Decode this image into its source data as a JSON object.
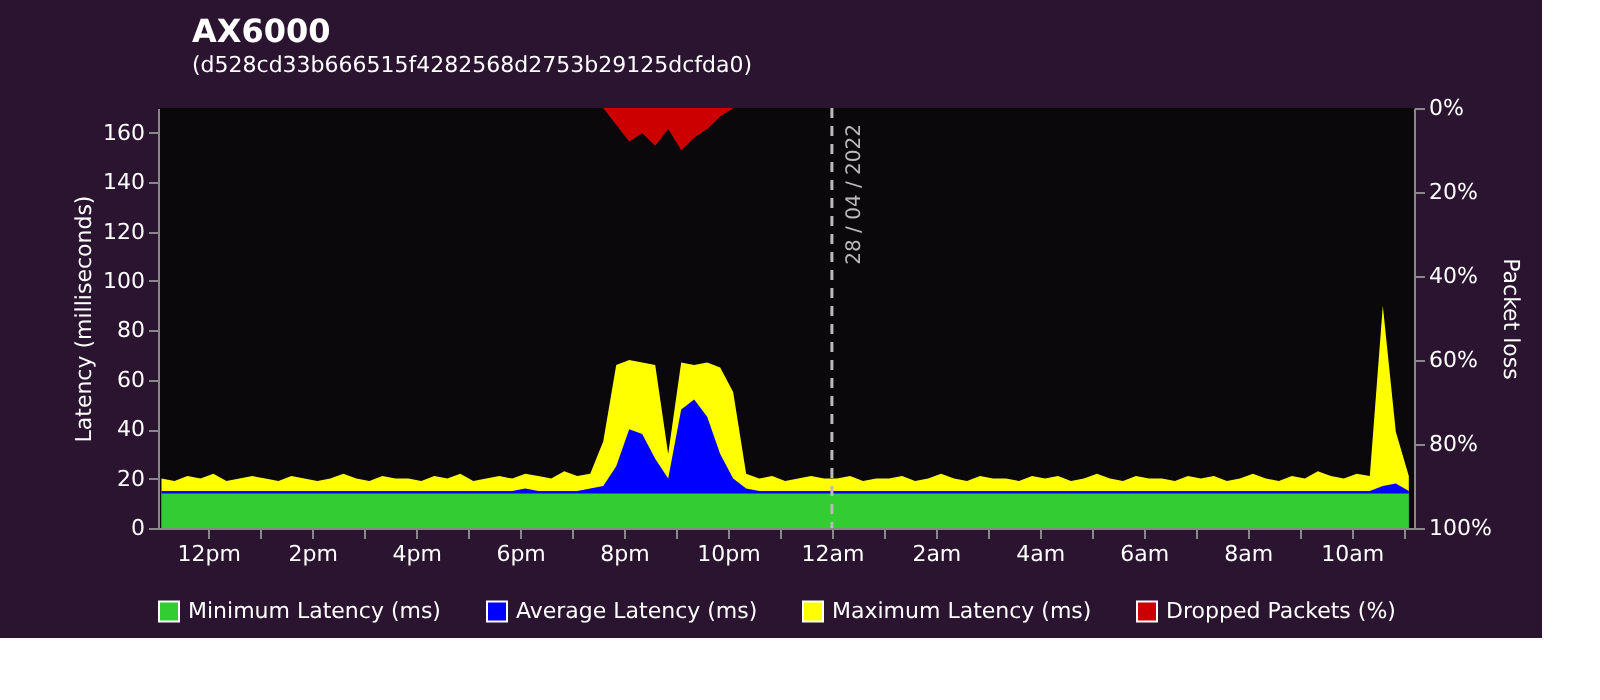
{
  "chart_data": {
    "type": "area",
    "title": "AX6000",
    "subtitle": "(d528cd33b666515f4282568d2753b29125dcfda0)",
    "ylabel": "Latency (milliseconds)",
    "y2label": "Packet loss",
    "legend": "bottom",
    "x": [
      "2022-04-27T11:06",
      "2022-04-27T11:21",
      "2022-04-27T11:36",
      "2022-04-27T11:51",
      "2022-04-27T12:06",
      "2022-04-27T12:21",
      "2022-04-27T12:36",
      "2022-04-27T12:51",
      "2022-04-27T13:06",
      "2022-04-27T13:21",
      "2022-04-27T13:36",
      "2022-04-27T13:51",
      "2022-04-27T14:06",
      "2022-04-27T14:21",
      "2022-04-27T14:36",
      "2022-04-27T14:51",
      "2022-04-27T15:06",
      "2022-04-27T15:21",
      "2022-04-27T15:36",
      "2022-04-27T15:51",
      "2022-04-27T16:06",
      "2022-04-27T16:21",
      "2022-04-27T16:36",
      "2022-04-27T16:51",
      "2022-04-27T17:06",
      "2022-04-27T17:21",
      "2022-04-27T17:36",
      "2022-04-27T17:51",
      "2022-04-27T18:06",
      "2022-04-27T18:21",
      "2022-04-27T18:36",
      "2022-04-27T18:51",
      "2022-04-27T19:06",
      "2022-04-27T19:21",
      "2022-04-27T19:36",
      "2022-04-27T19:51",
      "2022-04-27T20:06",
      "2022-04-27T20:21",
      "2022-04-27T20:36",
      "2022-04-27T20:51",
      "2022-04-27T21:06",
      "2022-04-27T21:21",
      "2022-04-27T21:36",
      "2022-04-27T21:51",
      "2022-04-27T22:06",
      "2022-04-27T22:21",
      "2022-04-27T22:36",
      "2022-04-27T22:51",
      "2022-04-27T23:06",
      "2022-04-27T23:21",
      "2022-04-27T23:36",
      "2022-04-27T23:51",
      "2022-04-28T00:06",
      "2022-04-28T00:21",
      "2022-04-28T00:36",
      "2022-04-28T00:51",
      "2022-04-28T01:06",
      "2022-04-28T01:21",
      "2022-04-28T01:36",
      "2022-04-28T01:51",
      "2022-04-28T02:06",
      "2022-04-28T02:21",
      "2022-04-28T02:36",
      "2022-04-28T02:51",
      "2022-04-28T03:06",
      "2022-04-28T03:21",
      "2022-04-28T03:36",
      "2022-04-28T03:51",
      "2022-04-28T04:06",
      "2022-04-28T04:21",
      "2022-04-28T04:36",
      "2022-04-28T04:51",
      "2022-04-28T05:06",
      "2022-04-28T05:21",
      "2022-04-28T05:36",
      "2022-04-28T05:51",
      "2022-04-28T06:06",
      "2022-04-28T06:21",
      "2022-04-28T06:36",
      "2022-04-28T06:51",
      "2022-04-28T07:06",
      "2022-04-28T07:21",
      "2022-04-28T07:36",
      "2022-04-28T07:51",
      "2022-04-28T08:06",
      "2022-04-28T08:21",
      "2022-04-28T08:36",
      "2022-04-28T08:51",
      "2022-04-28T09:06",
      "2022-04-28T09:21",
      "2022-04-28T09:36",
      "2022-04-28T09:51",
      "2022-04-28T10:06",
      "2022-04-28T10:21",
      "2022-04-28T10:36",
      "2022-04-28T10:51",
      "2022-04-28T11:06"
    ],
    "series": [
      {
        "name": "Minimum Latency (ms)",
        "color": "#33cc33",
        "values": [
          14,
          14,
          14,
          14,
          14,
          14,
          14,
          14,
          14,
          14,
          14,
          14,
          14,
          14,
          14,
          14,
          14,
          14,
          14,
          14,
          14,
          14,
          14,
          14,
          14,
          14,
          14,
          14,
          14,
          14,
          14,
          14,
          14,
          14,
          14,
          14,
          14,
          14,
          14,
          14,
          14,
          14,
          14,
          14,
          14,
          14,
          14,
          14,
          14,
          14,
          14,
          14,
          14,
          14,
          14,
          14,
          14,
          14,
          14,
          14,
          14,
          14,
          14,
          14,
          14,
          14,
          14,
          14,
          14,
          14,
          14,
          14,
          14,
          14,
          14,
          14,
          14,
          14,
          14,
          14,
          14,
          14,
          14,
          14,
          14,
          14,
          14,
          14,
          14,
          14,
          14,
          14,
          14,
          14,
          14,
          14,
          14
        ]
      },
      {
        "name": "Average Latency (ms)",
        "color": "#0000ff",
        "values": [
          15,
          15,
          15,
          15,
          15,
          15,
          15,
          15,
          15,
          15,
          15,
          15,
          15,
          15,
          15,
          15,
          15,
          15,
          15,
          15,
          15,
          15,
          15,
          15,
          15,
          15,
          15,
          15,
          16,
          15,
          15,
          15,
          15,
          16,
          17,
          25,
          40,
          38,
          28,
          20,
          48,
          52,
          45,
          30,
          20,
          16,
          15,
          15,
          15,
          15,
          15,
          15,
          15,
          15,
          15,
          15,
          15,
          15,
          15,
          15,
          15,
          15,
          15,
          15,
          15,
          15,
          15,
          15,
          15,
          15,
          15,
          15,
          15,
          15,
          15,
          15,
          15,
          15,
          15,
          15,
          15,
          15,
          15,
          15,
          15,
          15,
          15,
          15,
          15,
          15,
          15,
          15,
          15,
          15,
          17,
          18,
          15
        ]
      },
      {
        "name": "Maximum Latency (ms)",
        "color": "#ffff00",
        "values": [
          20,
          19,
          21,
          20,
          22,
          19,
          20,
          21,
          20,
          19,
          21,
          20,
          19,
          20,
          22,
          20,
          19,
          21,
          20,
          20,
          19,
          21,
          20,
          22,
          19,
          20,
          21,
          20,
          22,
          21,
          20,
          23,
          21,
          22,
          35,
          66,
          68,
          67,
          66,
          30,
          67,
          66,
          67,
          65,
          55,
          22,
          20,
          21,
          19,
          20,
          21,
          20,
          20,
          21,
          19,
          20,
          20,
          21,
          19,
          20,
          22,
          20,
          19,
          21,
          20,
          20,
          19,
          21,
          20,
          21,
          19,
          20,
          22,
          20,
          19,
          21,
          20,
          20,
          19,
          21,
          20,
          21,
          19,
          20,
          22,
          20,
          19,
          21,
          20,
          23,
          21,
          20,
          22,
          21,
          90,
          39,
          21
        ]
      },
      {
        "name": "Dropped Packets (%)",
        "color": "#cc0000",
        "axis": "y2",
        "values": [
          0,
          0,
          0,
          0,
          0,
          0,
          0,
          0,
          0,
          0,
          0,
          0,
          0,
          0,
          0,
          0,
          0,
          0,
          0,
          0,
          0,
          0,
          0,
          0,
          0,
          0,
          0,
          0,
          0,
          0,
          0,
          0,
          0,
          0,
          0,
          4,
          8,
          6,
          9,
          5,
          10,
          7,
          5,
          2,
          0,
          0,
          0,
          0,
          0,
          0,
          0,
          0,
          0,
          0,
          0,
          0,
          0,
          0,
          0,
          0,
          0,
          0,
          0,
          0,
          0,
          0,
          0,
          0,
          0,
          0,
          0,
          0,
          0,
          0,
          0,
          0,
          0,
          0,
          0,
          0,
          0,
          0,
          0,
          0,
          0,
          0,
          0,
          0,
          0,
          0,
          0,
          0,
          0,
          0,
          0,
          0,
          0
        ]
      }
    ],
    "xlim": [
      "2022-04-27T11:02",
      "2022-04-28T11:12"
    ],
    "xticks": [
      {
        "value": "2022-04-27T12:00",
        "label": "12pm"
      },
      {
        "value": "2022-04-27T13:00",
        "label": null
      },
      {
        "value": "2022-04-27T14:00",
        "label": "2pm"
      },
      {
        "value": "2022-04-27T15:00",
        "label": null
      },
      {
        "value": "2022-04-27T16:00",
        "label": "4pm"
      },
      {
        "value": "2022-04-27T17:00",
        "label": null
      },
      {
        "value": "2022-04-27T18:00",
        "label": "6pm"
      },
      {
        "value": "2022-04-27T19:00",
        "label": null
      },
      {
        "value": "2022-04-27T20:00",
        "label": "8pm"
      },
      {
        "value": "2022-04-27T21:00",
        "label": null
      },
      {
        "value": "2022-04-27T22:00",
        "label": "10pm"
      },
      {
        "value": "2022-04-27T23:00",
        "label": null
      },
      {
        "value": "2022-04-28T00:00",
        "label": "12am"
      },
      {
        "value": "2022-04-28T01:00",
        "label": null
      },
      {
        "value": "2022-04-28T02:00",
        "label": "2am"
      },
      {
        "value": "2022-04-28T03:00",
        "label": null
      },
      {
        "value": "2022-04-28T04:00",
        "label": "4am"
      },
      {
        "value": "2022-04-28T05:00",
        "label": null
      },
      {
        "value": "2022-04-28T06:00",
        "label": "6am"
      },
      {
        "value": "2022-04-28T07:00",
        "label": null
      },
      {
        "value": "2022-04-28T08:00",
        "label": "8am"
      },
      {
        "value": "2022-04-28T09:00",
        "label": null
      },
      {
        "value": "2022-04-28T10:00",
        "label": "10am"
      },
      {
        "value": "2022-04-28T11:00",
        "label": null
      }
    ],
    "ylim": [
      0,
      170
    ],
    "yticks": [
      0,
      20,
      40,
      60,
      80,
      100,
      120,
      140,
      160
    ],
    "y2lim": [
      100,
      0
    ],
    "y2ticks": [
      {
        "value": 0,
        "label": "0%"
      },
      {
        "value": 20,
        "label": "20%"
      },
      {
        "value": 40,
        "label": "40%"
      },
      {
        "value": 60,
        "label": "60%"
      },
      {
        "value": 80,
        "label": "80%"
      },
      {
        "value": 100,
        "label": "100%"
      }
    ],
    "ref_lines": [
      {
        "axis": "x",
        "value": "2022-04-28T00:00",
        "label": "28 / 04 / 2022",
        "line_style": "dashed",
        "color": "#bbbbbb"
      }
    ]
  }
}
